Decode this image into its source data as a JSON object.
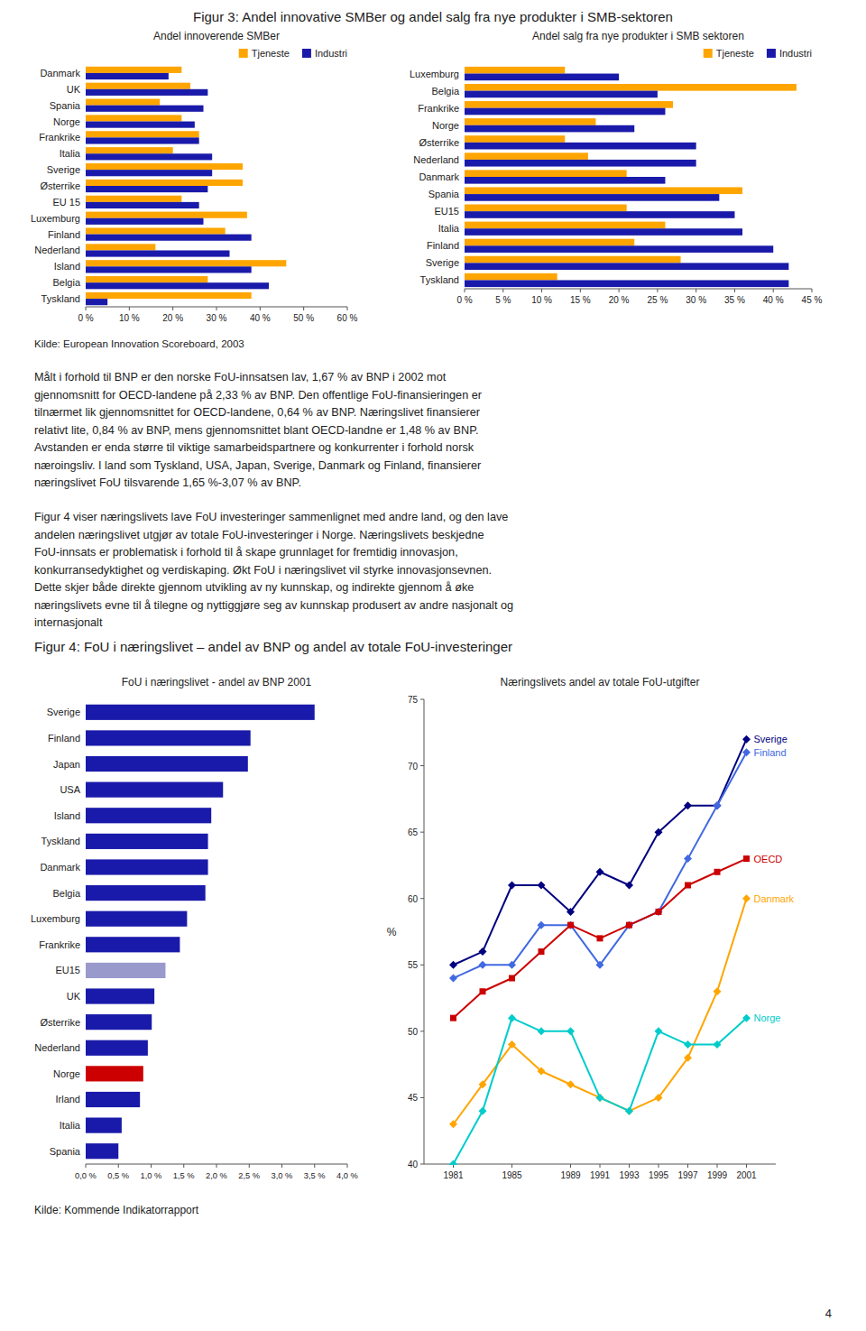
{
  "chart_data": [
    {
      "type": "bar",
      "orientation": "horizontal",
      "title": "Andel innoverende SMBer",
      "categories": [
        "Danmark",
        "UK",
        "Spania",
        "Norge",
        "Frankrike",
        "Italia",
        "Sverige",
        "Østerrike",
        "EU 15",
        "Luxemburg",
        "Finland",
        "Nederland",
        "Island",
        "Belgia",
        "Tyskland"
      ],
      "series": [
        {
          "name": "Tjeneste",
          "color": "#FFA500",
          "values": [
            22,
            24,
            17,
            22,
            26,
            20,
            36,
            36,
            22,
            37,
            32,
            16,
            46,
            28,
            38
          ]
        },
        {
          "name": "Industri",
          "color": "#1a1aaa",
          "values": [
            19,
            28,
            27,
            25,
            26,
            29,
            29,
            28,
            26,
            27,
            38,
            33,
            38,
            42,
            5
          ]
        }
      ],
      "xlim": [
        0,
        60
      ],
      "xticks": [
        {
          "value": 0,
          "label": "0 %"
        },
        {
          "value": 10,
          "label": "10 %"
        },
        {
          "value": 20,
          "label": "20 %"
        },
        {
          "value": 30,
          "label": "30 %"
        },
        {
          "value": 40,
          "label": "40 %"
        },
        {
          "value": 50,
          "label": "50 %"
        },
        {
          "value": 60,
          "label": "60 %"
        }
      ],
      "grid": false,
      "legend": "upper right",
      "annotations": [
        "Figur 3: Andel innovative SMBer og andel salg fra nye produkter i SMB-sektoren",
        "Kilde: European Innovation Scoreboard, 2003",
        [
          "Målt i forhold til BNP er den norske FoU-innsatsen lav, 1,67 % av BNP i 2002 mot",
          "gjennomsnitt for OECD-landene på 2,33 % av BNP. Den offentlige FoU-finansieringen er",
          "tilnærmet lik gjennomsnittet for OECD-landene, 0,64 % av BNP. Næringslivet finansierer",
          "relativt lite, 0,84 % av BNP, mens gjennomsnittet blant OECD-landne er 1,48 % av BNP.",
          "Avstanden er enda større til viktige samarbeidspartnere og konkurrenter i forhold norsk",
          "næroingsliv. I land som Tyskland, USA, Japan, Sverige, Danmark og Finland, finansierer",
          "næringslivet FoU tilsvarende 1,65 %-3,07 % av BNP."
        ],
        [
          "Figur 4 viser næringslivets lave FoU investeringer sammenlignet med andre land, og den lave",
          "andelen næringslivet utgjør av totale FoU-investeringer i Norge. Næringslivets beskjedne",
          "FoU-innsats er problematisk i forhold til å skape grunnlaget for fremtidig innovasjon,",
          "konkurransedyktighet og verdiskaping. Økt FoU i næringslivet vil styrke innovasjonsevnen.",
          "Dette skjer både direkte gjennom utvikling av ny kunnskap, og indirekte gjennom å øke",
          "næringslivets evne til å tilegne og nyttiggjøre seg av kunnskap produsert av andre nasjonalt og",
          "internasjonalt"
        ]
      ]
    },
    {
      "type": "bar",
      "orientation": "horizontal",
      "title": "Andel salg fra nye produkter i SMB sektoren",
      "categories": [
        "Luxemburg",
        "Belgia",
        "Frankrike",
        "Norge",
        "Østerrike",
        "Nederland",
        "Danmark",
        "Spania",
        "EU15",
        "Italia",
        "Finland",
        "Sverige",
        "Tyskland"
      ],
      "series": [
        {
          "name": "Tjeneste",
          "color": "#FFA500",
          "values": [
            13,
            43,
            27,
            17,
            13,
            16,
            21,
            36,
            21,
            26,
            22,
            28,
            12
          ]
        },
        {
          "name": "Industri",
          "color": "#1a1aaa",
          "values": [
            20,
            25,
            26,
            22,
            30,
            30,
            26,
            33,
            35,
            36,
            40,
            42,
            42
          ]
        }
      ],
      "xlim": [
        0,
        45
      ],
      "xticks": [
        {
          "value": 0,
          "label": "0 %"
        },
        {
          "value": 5,
          "label": "5 %"
        },
        {
          "value": 10,
          "label": "10 %"
        },
        {
          "value": 15,
          "label": "15 %"
        },
        {
          "value": 20,
          "label": "20 %"
        },
        {
          "value": 25,
          "label": "25 %"
        },
        {
          "value": 30,
          "label": "30 %"
        },
        {
          "value": 35,
          "label": "35 %"
        },
        {
          "value": 40,
          "label": "40 %"
        },
        {
          "value": 45,
          "label": "45 %"
        }
      ],
      "grid": false,
      "legend": "upper right"
    },
    {
      "type": "bar",
      "orientation": "horizontal",
      "title": "FoU i næringslivet - andel av BNP 2001",
      "categories": [
        "Sverige",
        "Finland",
        "Japan",
        "USA",
        "Island",
        "Tyskland",
        "Danmark",
        "Belgia",
        "Luxemburg",
        "Frankrike",
        "EU15",
        "UK",
        "Østerrike",
        "Nederland",
        "Norge",
        "Irland",
        "Italia",
        "Spania"
      ],
      "values": [
        3.5,
        2.52,
        2.48,
        2.1,
        1.92,
        1.87,
        1.87,
        1.83,
        1.55,
        1.44,
        1.22,
        1.05,
        1.01,
        0.95,
        0.88,
        0.83,
        0.55,
        0.5
      ],
      "colors": [
        "#1a1aaa",
        "#1a1aaa",
        "#1a1aaa",
        "#1a1aaa",
        "#1a1aaa",
        "#1a1aaa",
        "#1a1aaa",
        "#1a1aaa",
        "#1a1aaa",
        "#1a1aaa",
        "#9999cc",
        "#1a1aaa",
        "#1a1aaa",
        "#1a1aaa",
        "#cc0000",
        "#1a1aaa",
        "#1a1aaa",
        "#1a1aaa"
      ],
      "xlim": [
        0,
        4.0
      ],
      "xticks": [
        {
          "value": 0,
          "label": "0,0 %"
        },
        {
          "value": 0.5,
          "label": "0,5 %"
        },
        {
          "value": 1.0,
          "label": "1,0 %"
        },
        {
          "value": 1.5,
          "label": "1,5 %"
        },
        {
          "value": 2.0,
          "label": "2,0 %"
        },
        {
          "value": 2.5,
          "label": "2,5 %"
        },
        {
          "value": 3.0,
          "label": "3,0 %"
        },
        {
          "value": 3.5,
          "label": "3,5 %"
        },
        {
          "value": 4.0,
          "label": "4,0 %"
        }
      ],
      "grid": false,
      "annotations": [
        "Figur 4: FoU i næringslivet – andel av BNP og andel av totale FoU-investeringer",
        "Kilde: Kommende Indikatorrapport",
        "4"
      ]
    },
    {
      "type": "line",
      "title": "Næringslivets andel av totale FoU-utgifter",
      "x": [
        1981,
        1983,
        1985,
        1987,
        1989,
        1991,
        1993,
        1995,
        1997,
        1999,
        2001
      ],
      "series": [
        {
          "name": "Sverige",
          "color": "#000080",
          "marker": "diamond",
          "values": [
            55,
            56,
            61,
            61,
            59,
            62,
            61,
            65,
            67,
            67,
            72
          ]
        },
        {
          "name": "Finland",
          "color": "#4169e1",
          "marker": "diamond",
          "values": [
            54,
            55,
            55,
            58,
            58,
            55,
            58,
            59,
            63,
            67,
            71
          ]
        },
        {
          "name": "OECD",
          "color": "#cc0000",
          "marker": "square",
          "values": [
            51,
            53,
            54,
            56,
            58,
            57,
            58,
            59,
            61,
            62,
            63
          ]
        },
        {
          "name": "Danmark",
          "color": "#FFA500",
          "marker": "diamond",
          "values": [
            43,
            46,
            49,
            47,
            46,
            45,
            44,
            45,
            48,
            53,
            60
          ]
        },
        {
          "name": "Norge",
          "color": "#00cccc",
          "marker": "diamond",
          "values": [
            40,
            44,
            51,
            50,
            50,
            45,
            44,
            50,
            49,
            49,
            51
          ]
        }
      ],
      "xlim": [
        1979,
        2003
      ],
      "xticks": [
        1981,
        1985,
        1989,
        1991,
        1993,
        1995,
        1997,
        1999,
        2001
      ],
      "ylim": [
        40,
        75
      ],
      "yticks": [
        40,
        45,
        50,
        55,
        60,
        65,
        70,
        75
      ],
      "ylabel": "%",
      "grid": false
    }
  ]
}
